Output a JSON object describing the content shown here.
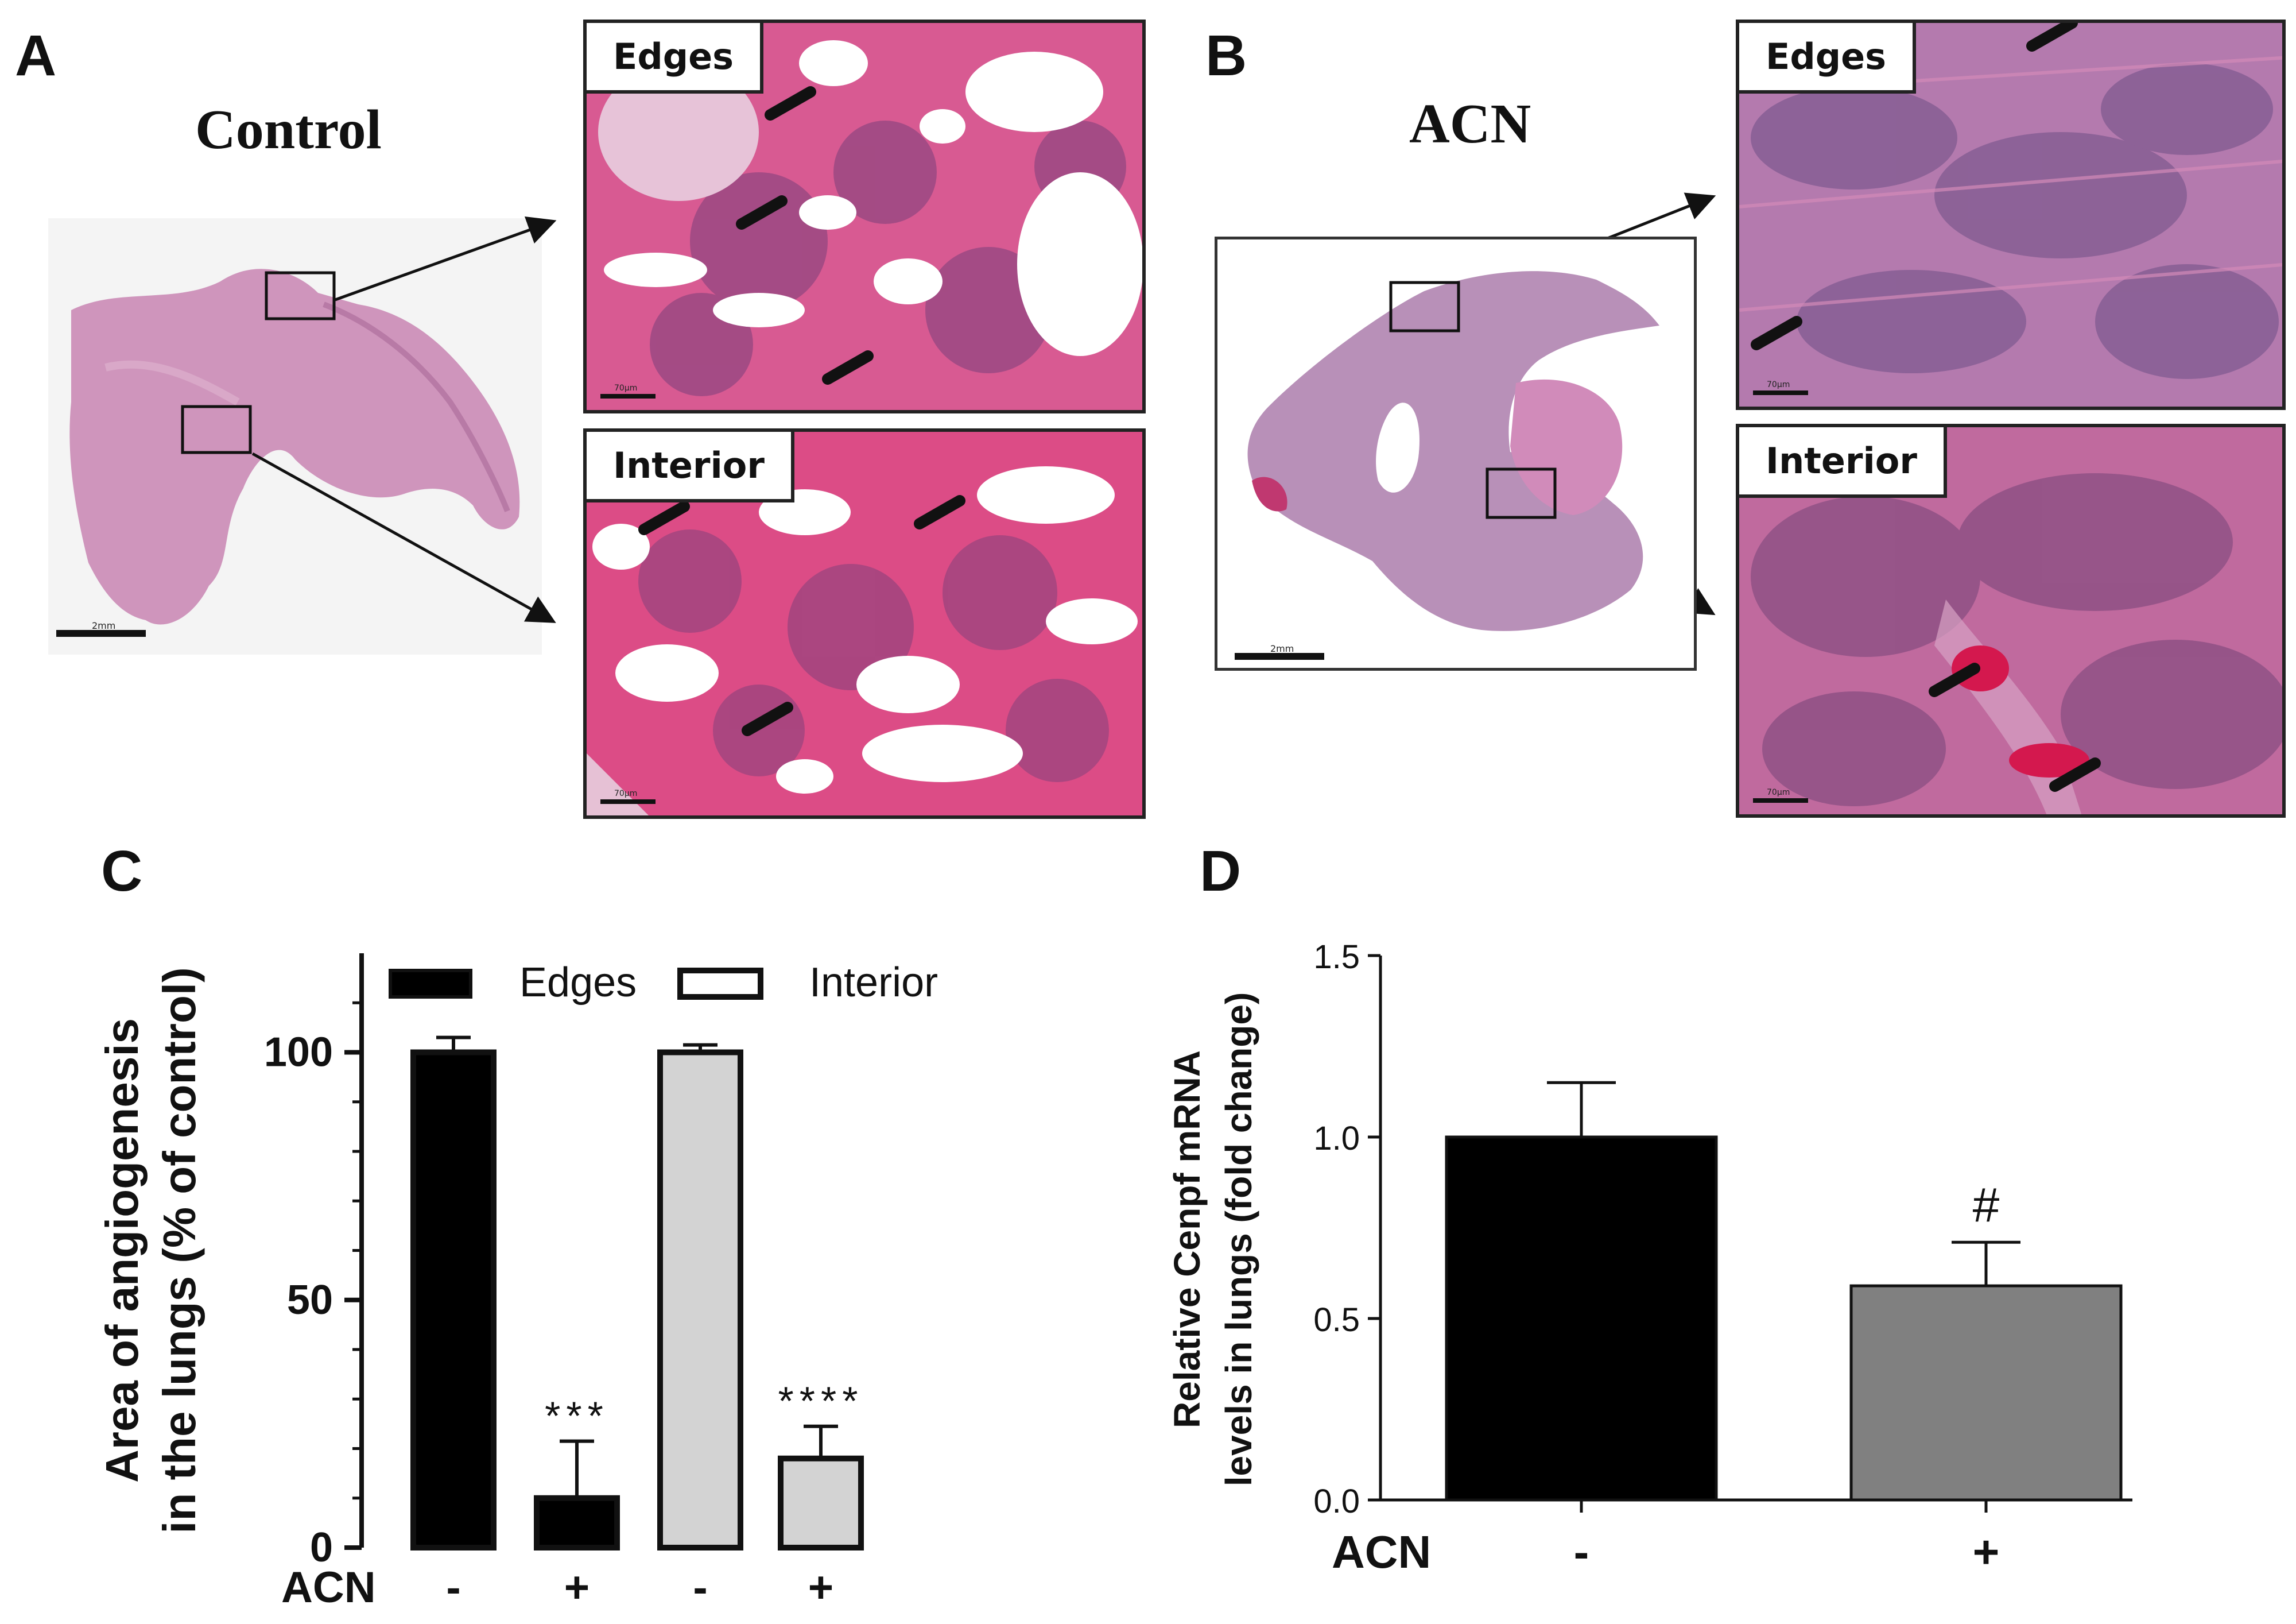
{
  "panels": {
    "A": {
      "letter": "A",
      "title": "Control",
      "scale_label": "2mm",
      "edges_label": "Edges",
      "interior_label": "Interior",
      "micro_scale": "70µm"
    },
    "B": {
      "letter": "B",
      "title": "ACN",
      "scale_label": "2mm",
      "edges_label": "Edges",
      "interior_label": "Interior",
      "micro_scale": "70µm"
    },
    "C": {
      "letter": "C"
    },
    "D": {
      "letter": "D"
    }
  },
  "colors": {
    "edges_bar": "#000000",
    "interior_bar": "#d3d3d3",
    "control_bar_D": "#000000",
    "acn_bar_D": "#808080",
    "tissue_pink": "#d7a3c5",
    "tissue_purple": "#8e5a94",
    "rbc_red": "#e0306a"
  },
  "chart_data": [
    {
      "type": "bar",
      "panel": "C",
      "ylabel": [
        "Area of angiogenesis",
        "in the lungs (% of control)"
      ],
      "yticks": [
        0,
        50,
        100
      ],
      "ylim": [
        0,
        120
      ],
      "row_label": "ACN",
      "categories": [
        "-",
        "+",
        "-",
        "+"
      ],
      "series": [
        {
          "name": "Edges",
          "values": [
            100,
            10,
            null,
            null
          ],
          "errors": [
            3,
            11.5,
            null,
            null
          ]
        },
        {
          "name": "Interior",
          "values": [
            null,
            null,
            100,
            18
          ],
          "errors": [
            null,
            null,
            1.5,
            6.5
          ]
        }
      ],
      "annotations": [
        "",
        "***",
        "",
        "****"
      ],
      "legend": "top"
    },
    {
      "type": "bar",
      "panel": "D",
      "ylabel": [
        "Relative Cenpf mRNA",
        "levels in lungs (fold change)"
      ],
      "yticks": [
        "0.0",
        "0.5",
        "1.0",
        "1.5"
      ],
      "ylim": [
        0,
        1.5
      ],
      "row_label": "ACN",
      "categories": [
        "-",
        "+"
      ],
      "values": [
        1.0,
        0.59
      ],
      "errors": [
        0.15,
        0.12
      ],
      "annotations": [
        "",
        "#"
      ]
    }
  ]
}
